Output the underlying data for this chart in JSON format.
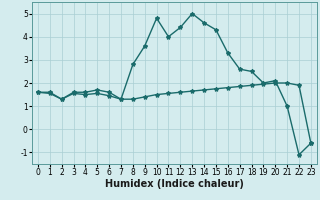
{
  "xlabel": "Humidex (Indice chaleur)",
  "xlim": [
    -0.5,
    23.5
  ],
  "ylim": [
    -1.5,
    5.5
  ],
  "yticks": [
    -1,
    0,
    1,
    2,
    3,
    4,
    5
  ],
  "xticks": [
    0,
    1,
    2,
    3,
    4,
    5,
    6,
    7,
    8,
    9,
    10,
    11,
    12,
    13,
    14,
    15,
    16,
    17,
    18,
    19,
    20,
    21,
    22,
    23
  ],
  "background_color": "#d4ecee",
  "grid_color": "#aacfd4",
  "line_color": "#1a6b6b",
  "curve1_x": [
    0,
    1,
    2,
    3,
    4,
    5,
    6,
    7,
    8,
    9,
    10,
    11,
    12,
    13,
    14,
    15,
    16,
    17,
    18,
    19,
    20,
    21,
    22,
    23
  ],
  "curve1_y": [
    1.6,
    1.6,
    1.3,
    1.6,
    1.6,
    1.7,
    1.6,
    1.3,
    2.8,
    3.6,
    4.8,
    4.0,
    4.4,
    5.0,
    4.6,
    4.3,
    3.3,
    2.6,
    2.5,
    2.0,
    2.1,
    1.0,
    -1.1,
    -0.6
  ],
  "curve2_x": [
    0,
    1,
    2,
    3,
    4,
    5,
    6,
    7,
    8,
    9,
    10,
    11,
    12,
    13,
    14,
    15,
    16,
    17,
    18,
    19,
    20,
    21,
    22,
    23
  ],
  "curve2_y": [
    1.6,
    1.55,
    1.3,
    1.55,
    1.5,
    1.55,
    1.45,
    1.3,
    1.3,
    1.4,
    1.5,
    1.55,
    1.6,
    1.65,
    1.7,
    1.75,
    1.8,
    1.85,
    1.9,
    1.95,
    2.0,
    2.0,
    1.9,
    -0.6
  ],
  "marker": "*",
  "marker_size": 3,
  "line_width": 1.0,
  "xlabel_fontsize": 7,
  "tick_fontsize": 5.5
}
